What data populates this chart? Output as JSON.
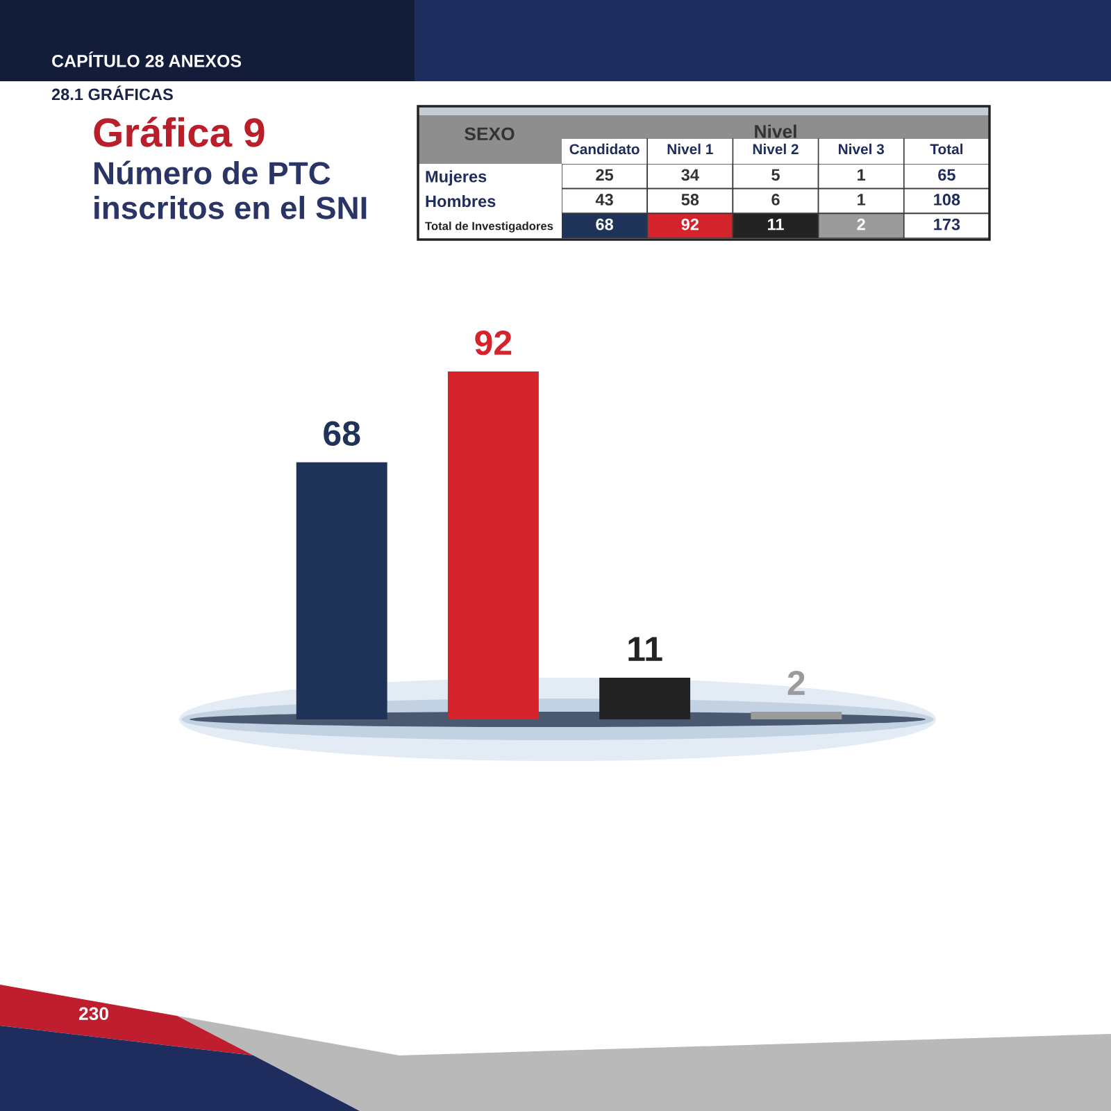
{
  "chart_data": [
    {
      "type": "heatmap",
      "title": "Gráfica 9",
      "subtitle": "Número de PTC\ninscritos en el SNI",
      "annotations": [
        "CAPÍTULO 28 ANEXOS",
        "28.1 GRÁFICAS",
        "230"
      ],
      "xlabel": "Nivel",
      "ylabel": "SEXO",
      "categories": [
        "Candidato",
        "Nivel 1",
        "Nivel 2",
        "Nivel 3",
        "Total"
      ],
      "y_categories": [
        "Mujeres",
        "Hombres",
        "Total de Investigadores"
      ],
      "cells": [
        [
          25,
          34,
          5,
          1,
          65
        ],
        [
          43,
          58,
          6,
          1,
          108
        ],
        [
          68,
          92,
          11,
          2,
          173
        ]
      ],
      "data_labels": true
    },
    {
      "type": "bar",
      "categories": [
        null,
        null,
        null,
        null
      ],
      "values": [
        68,
        92,
        11,
        2
      ],
      "colors": [
        "#1f3358",
        "#d4232a",
        "#232323",
        "#9b9b9b"
      ],
      "data_labels": true
    }
  ]
}
